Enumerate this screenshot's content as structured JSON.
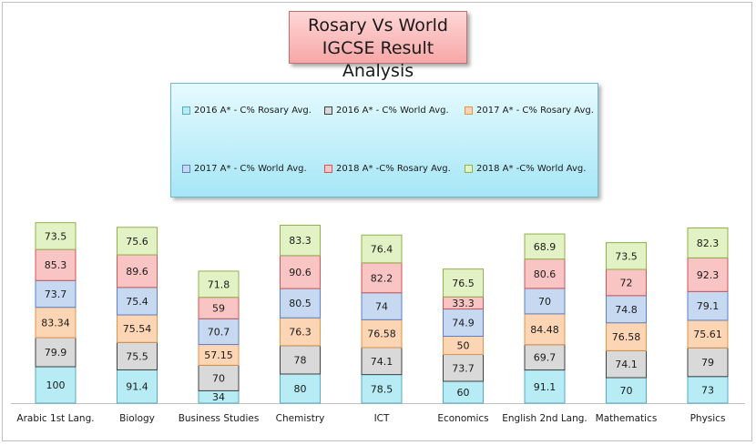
{
  "chart_data": {
    "type": "bar",
    "stacked": true,
    "title": [
      "Rosary Vs World",
      "IGCSE Result Analysis"
    ],
    "xlabel": "",
    "ylabel": "",
    "grid": false,
    "legend_position": "top-center",
    "categories": [
      "Arabic 1st Lang.",
      "Biology",
      "Business Studies",
      "Chemistry",
      "ICT",
      "Economics",
      "English 2nd Lang.",
      "Mathematics",
      "Physics"
    ],
    "series": [
      {
        "name": "2016 A* - C% Rosary Avg.",
        "color": "#b7ecf4",
        "values": [
          100,
          91.4,
          34,
          80,
          78.5,
          60,
          91.1,
          70,
          73
        ]
      },
      {
        "name": "2016 A* - C% World Avg.",
        "color": "#d9d9d9",
        "values": [
          79.9,
          75.5,
          70,
          78,
          74.1,
          73.7,
          69.7,
          74.1,
          79
        ]
      },
      {
        "name": "2017 A* - C% Rosary Avg.",
        "color": "#fcd5b4",
        "values": [
          83.34,
          75.54,
          57.15,
          76.3,
          76.58,
          50,
          84.48,
          76.58,
          75.61
        ]
      },
      {
        "name": "2017 A* - C% World Avg.",
        "color": "#c6d9f1",
        "values": [
          73.7,
          75.4,
          70.7,
          80.5,
          74,
          74.9,
          70,
          74.8,
          79.1
        ]
      },
      {
        "name": "2018 A* -C% Rosary Avg.",
        "color": "#f9c4c4",
        "values": [
          85.3,
          89.6,
          59,
          90.6,
          82.2,
          33.3,
          80.6,
          72,
          92.3
        ]
      },
      {
        "name": "2018 A* -C% World Avg.",
        "color": "#e3f2c4",
        "values": [
          73.5,
          75.6,
          71.8,
          83.3,
          76.4,
          76.5,
          68.9,
          73.5,
          82.3
        ]
      }
    ],
    "colors": {
      "borders": [
        "#5aa9c4",
        "#404040",
        "#e0944a",
        "#5b7fc8",
        "#d05555",
        "#8fb04a"
      ],
      "title_background": "#f7a7a7",
      "legend_background": "#bdeefa"
    }
  }
}
